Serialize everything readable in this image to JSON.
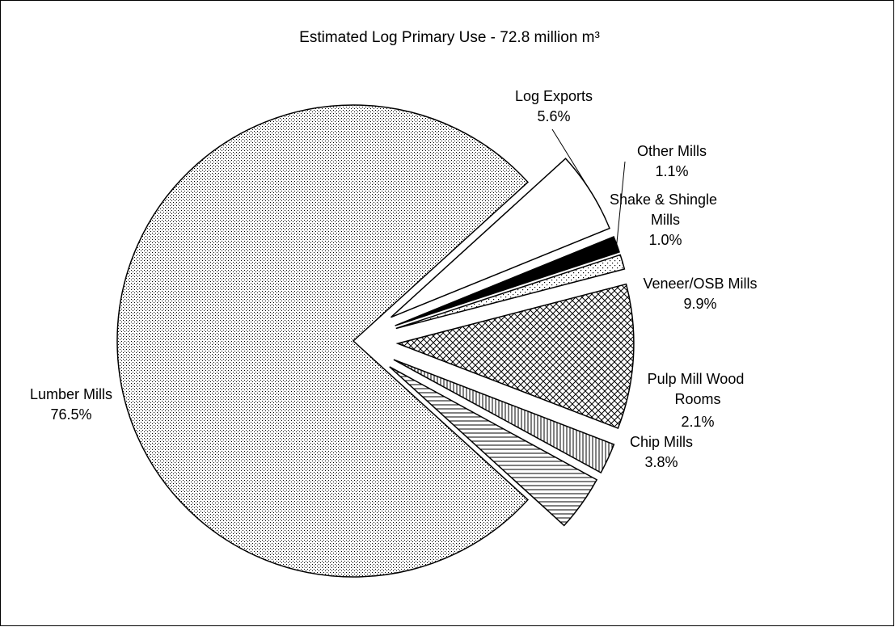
{
  "chart_data": {
    "type": "pie",
    "title": "Estimated Log Primary Use - 72.8 million m³",
    "slices": [
      {
        "label": "Lumber Mills",
        "value": 76.5,
        "value_label": "76.5%",
        "pattern": "dots",
        "exploded": false
      },
      {
        "label": "Log Exports",
        "value": 5.6,
        "value_label": "5.6%",
        "pattern": "white",
        "exploded": true
      },
      {
        "label": "Other Mills",
        "value": 1.1,
        "value_label": "1.1%",
        "pattern": "black",
        "exploded": true
      },
      {
        "label": "Shake & Shingle Mills",
        "value": 1.0,
        "value_label": "1.0%",
        "pattern": "sparse-dots",
        "exploded": true
      },
      {
        "label": "Veneer/OSB Mills",
        "value": 9.9,
        "value_label": "9.9%",
        "pattern": "crosshatch",
        "exploded": true
      },
      {
        "label": "Pulp Mill Wood Rooms",
        "value": 2.1,
        "value_label": "2.1%",
        "pattern": "vertical-lines",
        "exploded": true
      },
      {
        "label": "Chip Mills",
        "value": 3.8,
        "value_label": "3.8%",
        "pattern": "horizontal-lines",
        "exploded": true
      }
    ],
    "colors": {
      "stroke": "#000000",
      "background": "#ffffff",
      "fill_dark": "#000000"
    }
  }
}
